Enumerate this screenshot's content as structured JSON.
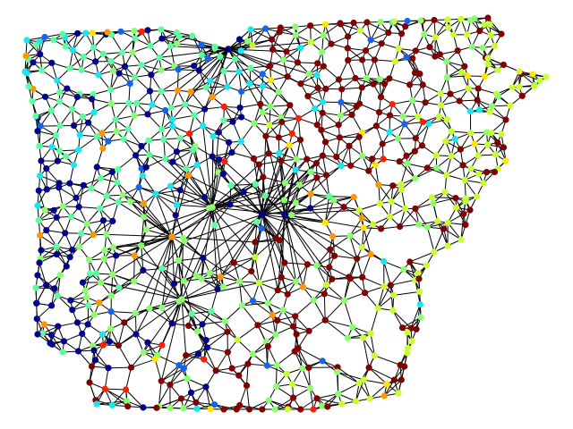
{
  "figure": {
    "type": "planar-mesh-graph",
    "background": "#ffffff",
    "edge_color": "#000000",
    "node_border": "none",
    "colormap": "jet",
    "palette": {
      "dark_navy": "#00008b",
      "blue": "#1464f0",
      "cyan": "#19e6f0",
      "aquamarine": "#5cffa0",
      "light_green": "#8cff6e",
      "yellow_green": "#c8ff32",
      "yellow": "#ffe600",
      "orange": "#ff9600",
      "red": "#ff1e00",
      "dark_red": "#800000"
    },
    "regions_by_dominant_color": [
      {
        "area": "west",
        "color": "dark_navy"
      },
      {
        "area": "northwest",
        "color": "aquamarine"
      },
      {
        "area": "northeast",
        "color": "dark_red"
      },
      {
        "area": "east",
        "color": "yellow_green"
      },
      {
        "area": "south-central",
        "color": "dark_red"
      },
      {
        "area": "southwest",
        "color": "light_green"
      }
    ],
    "hub_nodes": 6
  }
}
